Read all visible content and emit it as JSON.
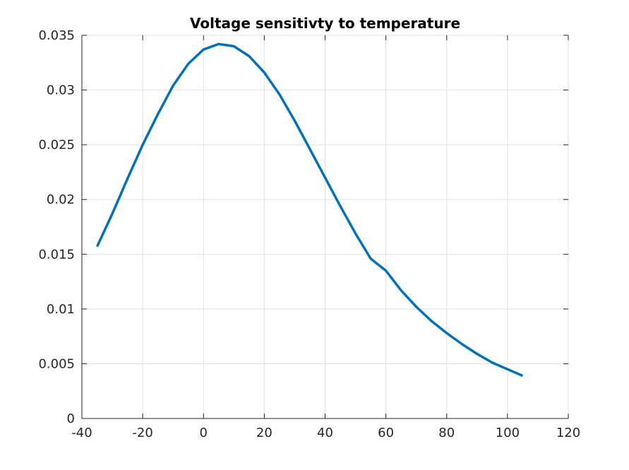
{
  "chart_data": {
    "type": "line",
    "title": "Voltage sensitivty to temperature",
    "xlabel": "",
    "ylabel": "",
    "xlim": [
      -40,
      120
    ],
    "ylim": [
      0,
      0.035
    ],
    "grid": true,
    "x_ticks": [
      -40,
      -20,
      0,
      20,
      40,
      60,
      80,
      100,
      120
    ],
    "x_tick_labels": [
      "-40",
      "-20",
      "0",
      "20",
      "40",
      "60",
      "80",
      "100",
      "120"
    ],
    "y_ticks": [
      0,
      0.005,
      0.01,
      0.015,
      0.02,
      0.025,
      0.03,
      0.035
    ],
    "y_tick_labels": [
      "0",
      "0.005",
      "0.01",
      "0.015",
      "0.02",
      "0.025",
      "0.03",
      "0.035"
    ],
    "series": [
      {
        "color": "#0072bd",
        "x": [
          -35,
          -30,
          -25,
          -20,
          -15,
          -10,
          -5,
          0,
          5,
          10,
          15,
          20,
          25,
          30,
          35,
          40,
          45,
          50,
          55,
          60,
          65,
          70,
          75,
          80,
          85,
          90,
          95,
          100,
          105
        ],
        "y": [
          0.0157,
          0.0187,
          0.0219,
          0.025,
          0.0278,
          0.0304,
          0.0324,
          0.0337,
          0.0342,
          0.034,
          0.0331,
          0.0316,
          0.0296,
          0.0272,
          0.0246,
          0.022,
          0.0194,
          0.0169,
          0.0146,
          0.0135,
          0.0117,
          0.0102,
          0.0089,
          0.0078,
          0.0068,
          0.0059,
          0.0051,
          0.0045,
          0.0039
        ]
      }
    ]
  }
}
